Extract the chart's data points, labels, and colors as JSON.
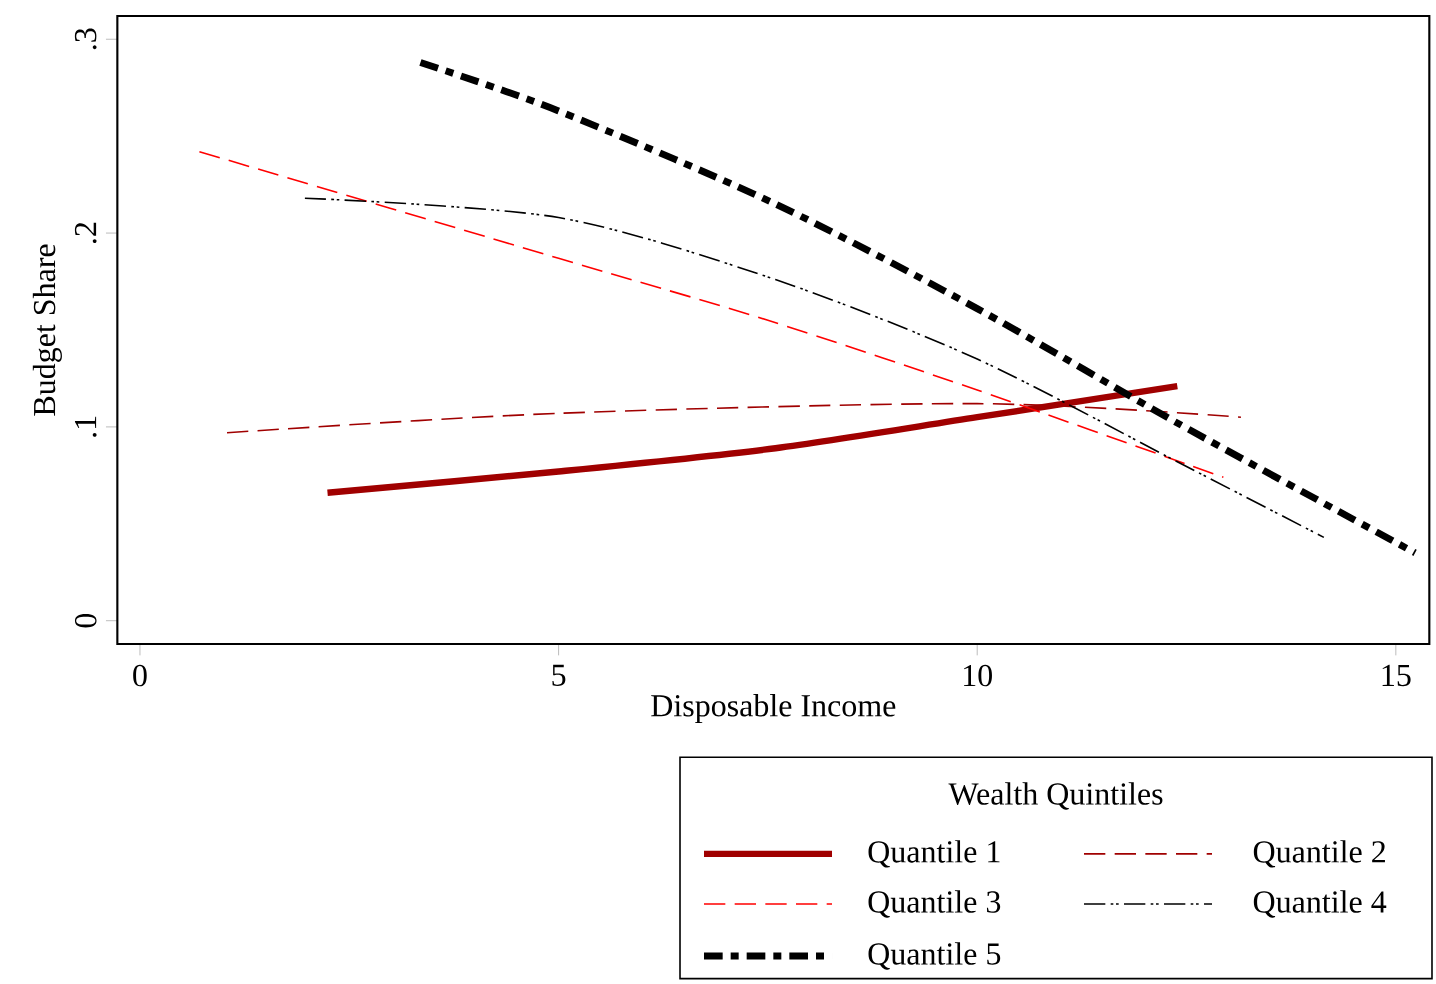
{
  "chart_data": {
    "type": "line",
    "xlabel": "Disposable Income",
    "ylabel": "Budget Share",
    "legend_title": "Wealth Quintiles",
    "legend": "bottom right",
    "xlim": [
      -0.27,
      15.4
    ],
    "ylim": [
      -0.012,
      0.312
    ],
    "xticks": [
      0,
      5,
      10,
      15
    ],
    "yticks": [
      {
        "value": 0,
        "label": "0"
      },
      {
        "value": 0.1,
        "label": ".1"
      },
      {
        "value": 0.2,
        "label": ".2"
      },
      {
        "value": 0.3,
        "label": ".3"
      }
    ],
    "grid": false,
    "series": [
      {
        "name": "Quantile 1",
        "color": "#a00000",
        "line_style": "solid",
        "x": [
          2.24,
          5,
          7.59,
          10,
          12.39
        ],
        "values": [
          0.066,
          0.077,
          0.089,
          0.105,
          0.121
        ]
      },
      {
        "name": "Quantile 2",
        "color": "#a00000",
        "line_style": "dashed",
        "x": [
          1.04,
          5,
          10,
          13.15
        ],
        "values": [
          0.097,
          0.107,
          0.112,
          0.105
        ]
      },
      {
        "name": "Quantile 3",
        "color": "#ff0000",
        "line_style": "dashed",
        "x": [
          0.71,
          5,
          7.5,
          10,
          12.94
        ],
        "values": [
          0.242,
          0.187,
          0.155,
          0.119,
          0.074
        ]
      },
      {
        "name": "Quantile 4",
        "color": "#000000",
        "line_style": "dash dot dot",
        "x": [
          1.97,
          5,
          7.59,
          10,
          12.39,
          14.14
        ],
        "values": [
          0.218,
          0.208,
          0.176,
          0.135,
          0.082,
          0.043
        ]
      },
      {
        "name": "Quantile 5",
        "color": "#000000",
        "line_style": "dash dot",
        "x": [
          3.35,
          5,
          7.59,
          10,
          12.39,
          15.23
        ],
        "values": [
          0.288,
          0.263,
          0.215,
          0.161,
          0.102,
          0.035
        ]
      }
    ]
  }
}
